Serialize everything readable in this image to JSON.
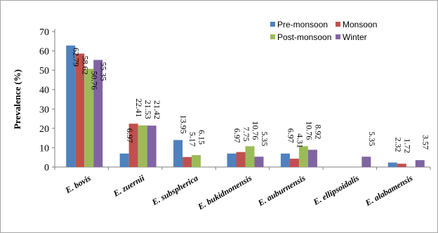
{
  "chart_data": {
    "type": "bar",
    "ylabel": "Prevalence (%)",
    "xlabel": "",
    "title": "",
    "ylim": [
      0,
      70
    ],
    "yticks": [
      0,
      10,
      20,
      30,
      40,
      50,
      60,
      70
    ],
    "grid": false,
    "legend_position": "top-right",
    "categories": [
      "E. bovis",
      "E. zuernii",
      "E. subspherica",
      "E. bukidnonensis",
      "E. auburnensis",
      "E. ellipsoidalis",
      "E. alabamensis"
    ],
    "series": [
      {
        "name": "Pre-monsoon",
        "color": "#4f81bd",
        "values": [
          62.79,
          6.97,
          13.95,
          6.97,
          6.97,
          null,
          2.32
        ],
        "labels": [
          "62.79",
          "6.97",
          "13.95",
          "6.97",
          "6.97",
          "",
          "2.32"
        ]
      },
      {
        "name": "Monsoon",
        "color": "#c0504d",
        "values": [
          58.62,
          22.41,
          5.17,
          7.75,
          4.31,
          null,
          1.72
        ],
        "labels": [
          "58.62",
          "22.41",
          "5.17",
          "7.75",
          "4.31",
          "",
          "1.72"
        ]
      },
      {
        "name": "Post-monsoon",
        "color": "#9bbb59",
        "values": [
          50.76,
          21.53,
          6.15,
          10.76,
          10.76,
          null,
          null
        ],
        "labels": [
          "50.76",
          "21.53",
          "6.15",
          "10.76",
          "10.76",
          "",
          ""
        ]
      },
      {
        "name": "Winter",
        "color": "#8064a2",
        "values": [
          55.35,
          21.42,
          null,
          5.35,
          8.92,
          5.35,
          3.57
        ],
        "labels": [
          "55.35",
          "21.42",
          "",
          "5.35",
          "8.92",
          "5.35",
          "3.57"
        ]
      }
    ]
  }
}
